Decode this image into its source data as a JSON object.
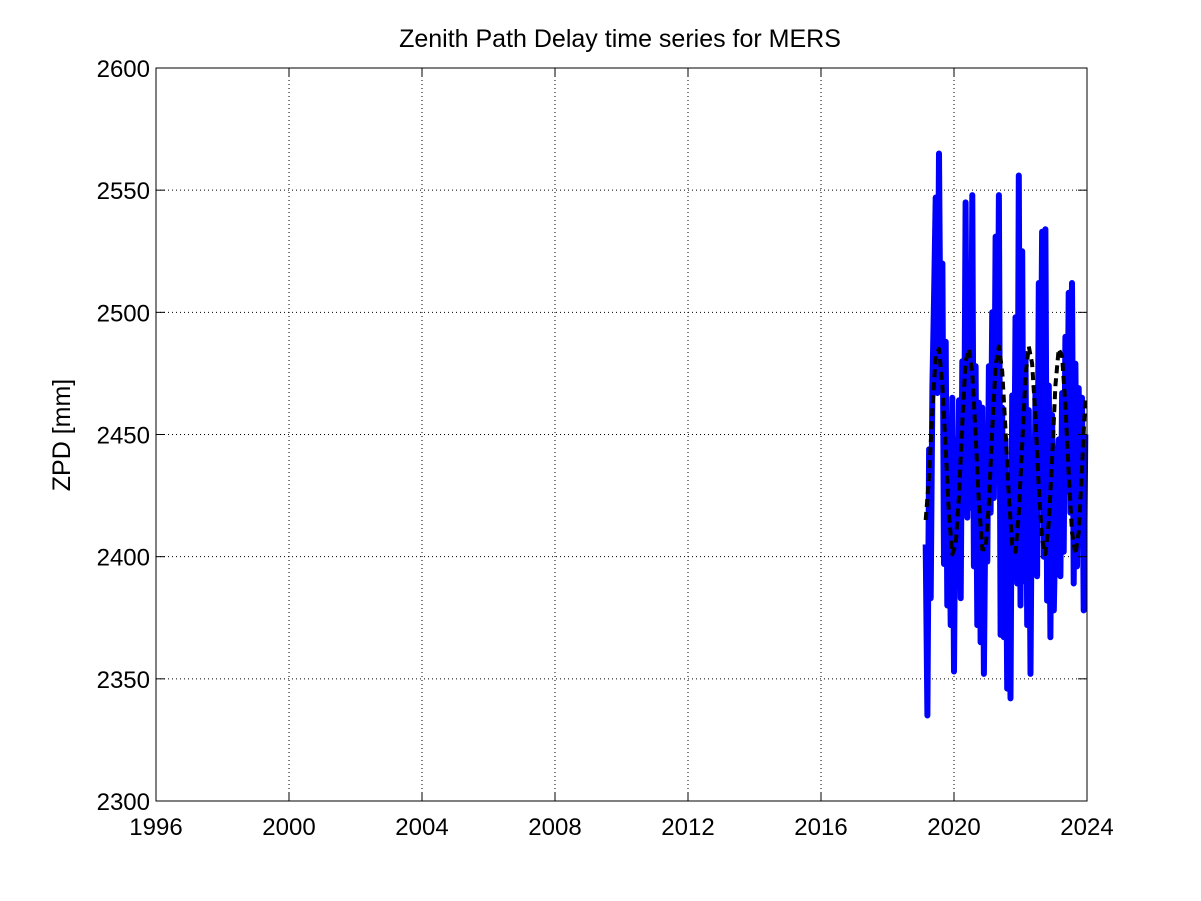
{
  "chart_data": {
    "type": "line",
    "title": "Zenith Path Delay time series for MERS",
    "xlabel": "",
    "ylabel": "ZPD [mm]",
    "xlim": [
      1996,
      2024
    ],
    "ylim": [
      2300,
      2600
    ],
    "xticks": [
      1996,
      2000,
      2004,
      2008,
      2012,
      2016,
      2020,
      2024
    ],
    "yticks": [
      2300,
      2350,
      2400,
      2450,
      2500,
      2550,
      2600
    ],
    "grid": true,
    "legend": "none",
    "series": [
      {
        "style": "solid",
        "color": "#0000ff",
        "x": [
          2019.15,
          2019.2,
          2019.25,
          2019.3,
          2019.35,
          2019.4,
          2019.45,
          2019.5,
          2019.55,
          2019.6,
          2019.65,
          2019.7,
          2019.75,
          2019.8,
          2019.85,
          2019.9,
          2019.95,
          2020.0,
          2020.05,
          2020.1,
          2020.15,
          2020.2,
          2020.25,
          2020.3,
          2020.35,
          2020.4,
          2020.45,
          2020.5,
          2020.55,
          2020.6,
          2020.65,
          2020.7,
          2020.75,
          2020.8,
          2020.85,
          2020.9,
          2020.95,
          2021.0,
          2021.05,
          2021.1,
          2021.15,
          2021.2,
          2021.25,
          2021.3,
          2021.35,
          2021.4,
          2021.45,
          2021.5,
          2021.55,
          2021.6,
          2021.65,
          2021.7,
          2021.75,
          2021.8,
          2021.85,
          2021.9,
          2021.95,
          2022.0,
          2022.05,
          2022.1,
          2022.15,
          2022.2,
          2022.25,
          2022.3,
          2022.35,
          2022.4,
          2022.45,
          2022.5,
          2022.55,
          2022.6,
          2022.65,
          2022.7,
          2022.75,
          2022.8,
          2022.85,
          2022.9,
          2022.95,
          2023.0,
          2023.05,
          2023.1,
          2023.15,
          2023.2,
          2023.25,
          2023.3,
          2023.35,
          2023.4,
          2023.45,
          2023.5,
          2023.55,
          2023.6,
          2023.65,
          2023.7,
          2023.75,
          2023.8,
          2023.85,
          2023.9,
          2023.95
        ],
        "y": [
          2405,
          2335,
          2444,
          2383,
          2470,
          2507,
          2547,
          2467,
          2565,
          2471,
          2520,
          2397,
          2488,
          2380,
          2436,
          2372,
          2465,
          2353,
          2448,
          2395,
          2464,
          2383,
          2480,
          2425,
          2545,
          2416,
          2490,
          2420,
          2548,
          2396,
          2478,
          2372,
          2463,
          2365,
          2461,
          2352,
          2430,
          2398,
          2478,
          2418,
          2500,
          2424,
          2531,
          2434,
          2548,
          2368,
          2461,
          2367,
          2448,
          2346,
          2398,
          2342,
          2466,
          2398,
          2498,
          2389,
          2556,
          2380,
          2525,
          2390,
          2483,
          2372,
          2460,
          2352,
          2444,
          2397,
          2469,
          2392,
          2512,
          2438,
          2533,
          2400,
          2534,
          2382,
          2470,
          2367,
          2458,
          2378,
          2412,
          2433,
          2448,
          2392,
          2467,
          2402,
          2490,
          2427,
          2508,
          2418,
          2512,
          2389,
          2479,
          2396,
          2469,
          2405,
          2465,
          2378,
          2450
        ]
      },
      {
        "style": "dashed",
        "color": "#000000",
        "x": [
          2019.15,
          2019.25,
          2019.35,
          2019.45,
          2019.55,
          2019.65,
          2019.75,
          2019.85,
          2019.95,
          2020.05,
          2020.15,
          2020.25,
          2020.35,
          2020.45,
          2020.55,
          2020.65,
          2020.75,
          2020.85,
          2020.95,
          2021.05,
          2021.15,
          2021.25,
          2021.35,
          2021.45,
          2021.55,
          2021.65,
          2021.75,
          2021.85,
          2021.95,
          2022.05,
          2022.15,
          2022.25,
          2022.35,
          2022.45,
          2022.55,
          2022.65,
          2022.75,
          2022.85,
          2022.95,
          2023.05,
          2023.15,
          2023.25,
          2023.35,
          2023.45,
          2023.55,
          2023.65,
          2023.75,
          2023.85,
          2023.95
        ],
        "y": [
          2415,
          2433,
          2460,
          2482,
          2485,
          2470,
          2444,
          2417,
          2401,
          2405,
          2425,
          2455,
          2480,
          2485,
          2475,
          2450,
          2422,
          2403,
          2403,
          2422,
          2452,
          2478,
          2486,
          2476,
          2452,
          2424,
          2405,
          2402,
          2418,
          2446,
          2474,
          2486,
          2479,
          2457,
          2428,
          2407,
          2401,
          2414,
          2440,
          2470,
          2485,
          2482,
          2462,
          2434,
          2410,
          2401,
          2410,
          2436,
          2465
        ]
      }
    ]
  }
}
